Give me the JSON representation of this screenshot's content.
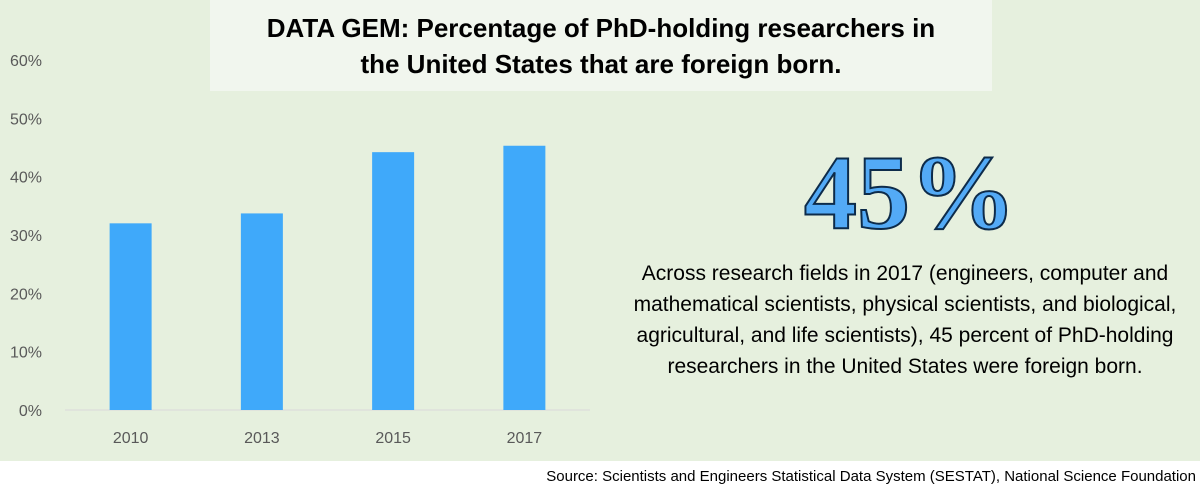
{
  "title": "DATA GEM: Percentage of PhD-holding researchers in\nthe United States that are foreign born.",
  "highlight": {
    "value": "45%",
    "description": "Across research fields in 2017 (engineers, computer and mathematical scientists, physical scientists, and biological, agricultural, and life scientists), 45 percent of PhD-holding researchers in the United States were foreign born."
  },
  "source": "Source: Scientists and Engineers Statistical Data System (SESTAT), National Science Foundation",
  "colors": {
    "bar": "#3fa9fa",
    "panel": "#e6f0de",
    "title_box": "#f1f6ee",
    "highlight_fill": "#53aaf6",
    "axis": "#d9d9d9"
  },
  "chart_data": {
    "type": "bar",
    "title": "DATA GEM: Percentage of PhD-holding researchers in the United States that are foreign born.",
    "categories": [
      "2010",
      "2013",
      "2015",
      "2017"
    ],
    "values": [
      32,
      33.7,
      44.2,
      45.3
    ],
    "value_format": "percent",
    "xlabel": "",
    "ylabel": "",
    "ylim": [
      0,
      60
    ],
    "yticks": [
      0,
      10,
      20,
      30,
      40,
      50,
      60
    ],
    "ytick_labels": [
      "0%",
      "10%",
      "20%",
      "30%",
      "40%",
      "50%",
      "60%"
    ],
    "grid": false,
    "legend": "none"
  }
}
